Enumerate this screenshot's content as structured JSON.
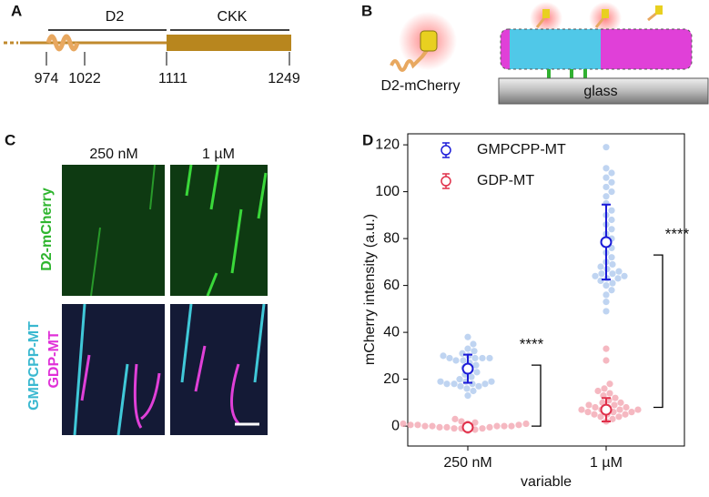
{
  "panel_a": {
    "label": "A",
    "domains": [
      "D2",
      "CKK"
    ],
    "residues": [
      "974",
      "1022",
      "1111",
      "1249"
    ]
  },
  "panel_b": {
    "label": "B",
    "protein": "D2-mCherry",
    "surface": "glass"
  },
  "panel_c": {
    "label": "C",
    "columns": [
      "250 nM",
      "1 µM"
    ],
    "row_top": "D2-mCherry",
    "row_bottom_1": "GMPCPP-MT",
    "row_bottom_2": "GDP-MT"
  },
  "panel_d_label": "D",
  "chart_data": {
    "type": "swarm",
    "xlabel": "variable",
    "ylabel": "mCherry intensity (a.u.)",
    "categories": [
      "250 nM",
      "1 µM"
    ],
    "ylim": [
      -8.5,
      124.7
    ],
    "yticks": [
      0,
      20,
      40,
      60,
      80,
      100,
      120
    ],
    "legend": "upper left",
    "series": [
      {
        "name": "GMPCPP-MT",
        "color": "#1c1cd8",
        "point_color": "#a9c6ec",
        "values": [
          24.5,
          78.5
        ],
        "errors": [
          6,
          16
        ],
        "points": [
          [
            13,
            15,
            16,
            17,
            17,
            18,
            18,
            18,
            18,
            19,
            19,
            19,
            20,
            21,
            22,
            23,
            24,
            25,
            26,
            27,
            28,
            28,
            29,
            29,
            29,
            29,
            30,
            30,
            31,
            32,
            33,
            35,
            38
          ],
          [
            49,
            53,
            56,
            58,
            60,
            61,
            62,
            63,
            63,
            64,
            64,
            65,
            65,
            66,
            67,
            68,
            69,
            70,
            72,
            74,
            76,
            78,
            80,
            82,
            84,
            86,
            88,
            90,
            92,
            95,
            98,
            100,
            102,
            104,
            106,
            108,
            110,
            119
          ]
        ]
      },
      {
        "name": "GDP-MT",
        "color": "#e0304a",
        "point_color": "#f2a0ac",
        "values": [
          -0.5,
          7
        ],
        "errors": [
          1,
          5
        ],
        "points": [
          [
            -2,
            -1.5,
            -1,
            -1,
            -1,
            -0.5,
            -0.5,
            -0.5,
            0,
            0,
            0,
            0,
            0,
            0.5,
            0.5,
            0.5,
            1,
            1,
            1,
            1.5,
            2,
            3
          ],
          [
            2,
            3,
            4,
            4,
            5,
            5,
            5,
            6,
            6,
            6,
            7,
            7,
            7,
            7,
            8,
            8,
            8,
            9,
            9,
            10,
            10,
            11,
            12,
            13,
            14,
            15,
            16,
            18,
            28,
            33
          ]
        ]
      }
    ],
    "annotations": [
      {
        "text": "****",
        "y": [
          26,
          0
        ]
      },
      {
        "text": "****",
        "y": [
          73,
          8
        ]
      }
    ]
  }
}
